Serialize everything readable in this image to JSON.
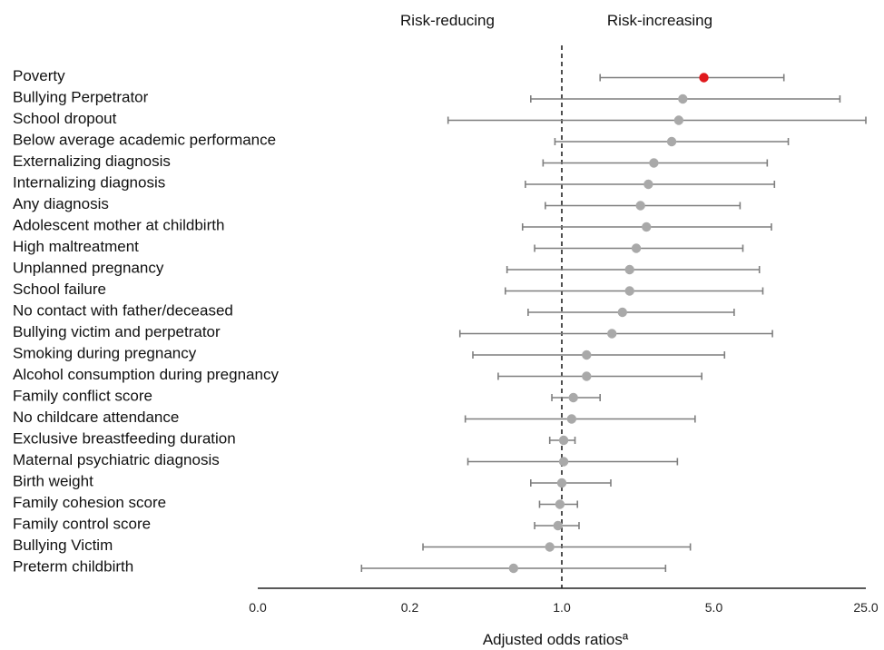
{
  "chart_data": {
    "type": "forest",
    "xlabel": "Adjusted odds ratiosª",
    "x_scale": "log",
    "xlim": [
      0.04,
      25.0
    ],
    "reference_line": 1.0,
    "x_ticks": [
      {
        "value": 0.04,
        "label": "0.0"
      },
      {
        "value": 0.2,
        "label": "0.2"
      },
      {
        "value": 1.0,
        "label": "1.0"
      },
      {
        "value": 5.0,
        "label": "5.0"
      },
      {
        "value": 25.0,
        "label": "25.0"
      }
    ],
    "headers": {
      "left": "Risk-reducing",
      "right": "Risk-increasing"
    },
    "grid": false,
    "highlight_color": "#e0191d",
    "point_color": "#a9a9a9",
    "line_color": "#7f7f7f",
    "rows": [
      {
        "label": "Poverty",
        "or": 4.5,
        "lo": 1.5,
        "hi": 10.5,
        "highlight": true
      },
      {
        "label": "Bullying Perpetrator",
        "or": 3.6,
        "lo": 0.72,
        "hi": 19.0
      },
      {
        "label": "School dropout",
        "or": 3.45,
        "lo": 0.3,
        "hi": 25.0
      },
      {
        "label": "Below average academic performance",
        "or": 3.2,
        "lo": 0.93,
        "hi": 11.0
      },
      {
        "label": "Externalizing diagnosis",
        "or": 2.65,
        "lo": 0.82,
        "hi": 8.8
      },
      {
        "label": "Internalizing diagnosis",
        "or": 2.5,
        "lo": 0.68,
        "hi": 9.5
      },
      {
        "label": "Any diagnosis",
        "or": 2.3,
        "lo": 0.84,
        "hi": 6.6
      },
      {
        "label": "Adolescent mother at childbirth",
        "or": 2.45,
        "lo": 0.66,
        "hi": 9.2
      },
      {
        "label": "High maltreatment",
        "or": 2.2,
        "lo": 0.75,
        "hi": 6.8
      },
      {
        "label": "Unplanned pregnancy",
        "or": 2.05,
        "lo": 0.56,
        "hi": 8.1
      },
      {
        "label": "School failure",
        "or": 2.05,
        "lo": 0.55,
        "hi": 8.4
      },
      {
        "label": "No contact with father/deceased",
        "or": 1.9,
        "lo": 0.7,
        "hi": 6.2
      },
      {
        "label": "Bullying victim and perpetrator",
        "or": 1.7,
        "lo": 0.34,
        "hi": 9.3
      },
      {
        "label": "Smoking during pregnancy",
        "or": 1.3,
        "lo": 0.39,
        "hi": 5.6
      },
      {
        "label": "Alcohol consumption during pregnancy",
        "or": 1.3,
        "lo": 0.51,
        "hi": 4.4
      },
      {
        "label": "Family conflict score",
        "or": 1.13,
        "lo": 0.9,
        "hi": 1.5
      },
      {
        "label": "No childcare attendance",
        "or": 1.11,
        "lo": 0.36,
        "hi": 4.1
      },
      {
        "label": "Exclusive breastfeeding duration",
        "or": 1.02,
        "lo": 0.88,
        "hi": 1.15
      },
      {
        "label": "Maternal psychiatric diagnosis",
        "or": 1.02,
        "lo": 0.37,
        "hi": 3.4
      },
      {
        "label": "Birth weight",
        "or": 1.0,
        "lo": 0.72,
        "hi": 1.68
      },
      {
        "label": "Family cohesion score",
        "or": 0.98,
        "lo": 0.79,
        "hi": 1.18
      },
      {
        "label": "Family control score",
        "or": 0.96,
        "lo": 0.75,
        "hi": 1.2
      },
      {
        "label": "Bullying Victim",
        "or": 0.88,
        "lo": 0.23,
        "hi": 3.9
      },
      {
        "label": "Preterm childbirth",
        "or": 0.6,
        "lo": 0.12,
        "hi": 3.0
      }
    ]
  }
}
